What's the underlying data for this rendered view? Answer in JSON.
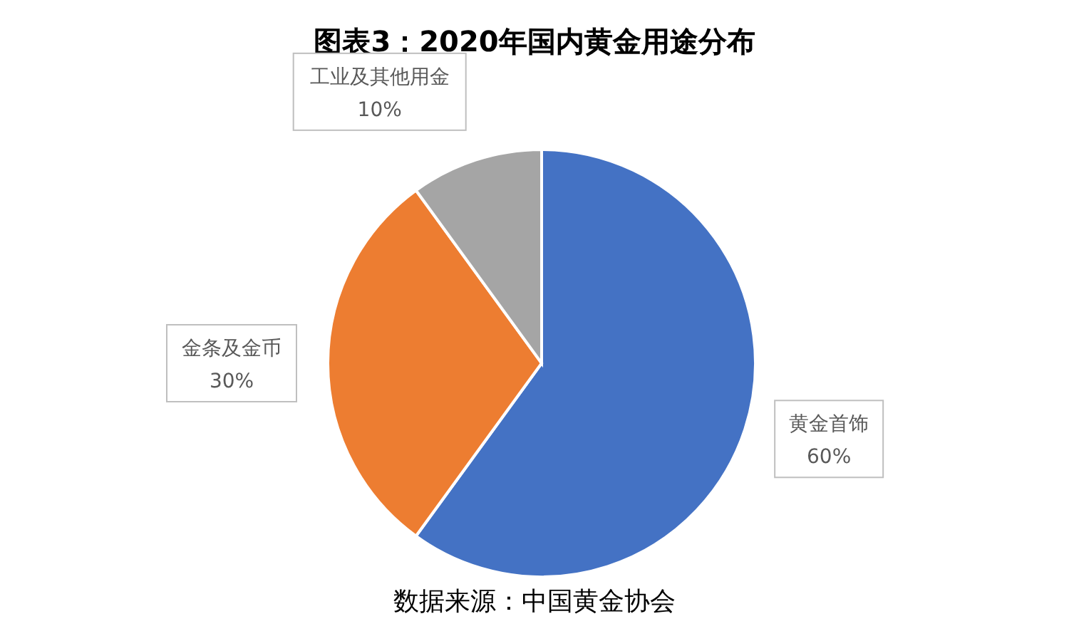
{
  "chart_data": {
    "type": "pie",
    "title": "图表3：2020年国内黄金用途分布",
    "categories": [
      "黄金首饰",
      "金条及金币",
      "工业及其他用金"
    ],
    "values": [
      60,
      30,
      10
    ],
    "colors": [
      "#4472c4",
      "#ed7d31",
      "#a5a5a5"
    ],
    "value_labels": [
      "60%",
      "30%",
      "10%"
    ],
    "legend": false,
    "annotations": [
      "数据来源：中国黄金协会"
    ]
  }
}
